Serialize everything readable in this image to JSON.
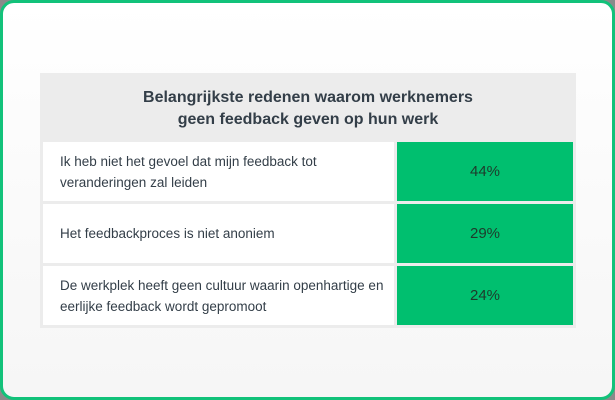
{
  "card": {
    "border_color": "#12c27a"
  },
  "table": {
    "title": "Belangrijkste redenen waarom werknemers\ngeen feedback geven op hun werk",
    "rows": [
      {
        "label": "Ik heb niet het gevoel dat mijn feedback tot veranderingen zal leiden",
        "value": "44%"
      },
      {
        "label": "Het feedbackproces is niet anoniem",
        "value": "29%"
      },
      {
        "label": "De werkplek heeft geen cultuur waarin openhartige en eerlijke feedback wordt gepromoot",
        "value": "24%"
      }
    ],
    "colors": {
      "header_bg": "#ececec",
      "label_bg": "#ffffff",
      "value_bg": "#00bf6f"
    }
  },
  "chart_data": {
    "type": "table",
    "title": "Belangrijkste redenen waarom werknemers geen feedback geven op hun werk",
    "categories": [
      "Ik heb niet het gevoel dat mijn feedback tot veranderingen zal leiden",
      "Het feedbackproces is niet anoniem",
      "De werkplek heeft geen cultuur waarin openhartige en eerlijke feedback wordt gepromoot"
    ],
    "values": [
      44,
      29,
      24
    ],
    "unit": "%",
    "xlabel": "",
    "ylabel": ""
  }
}
